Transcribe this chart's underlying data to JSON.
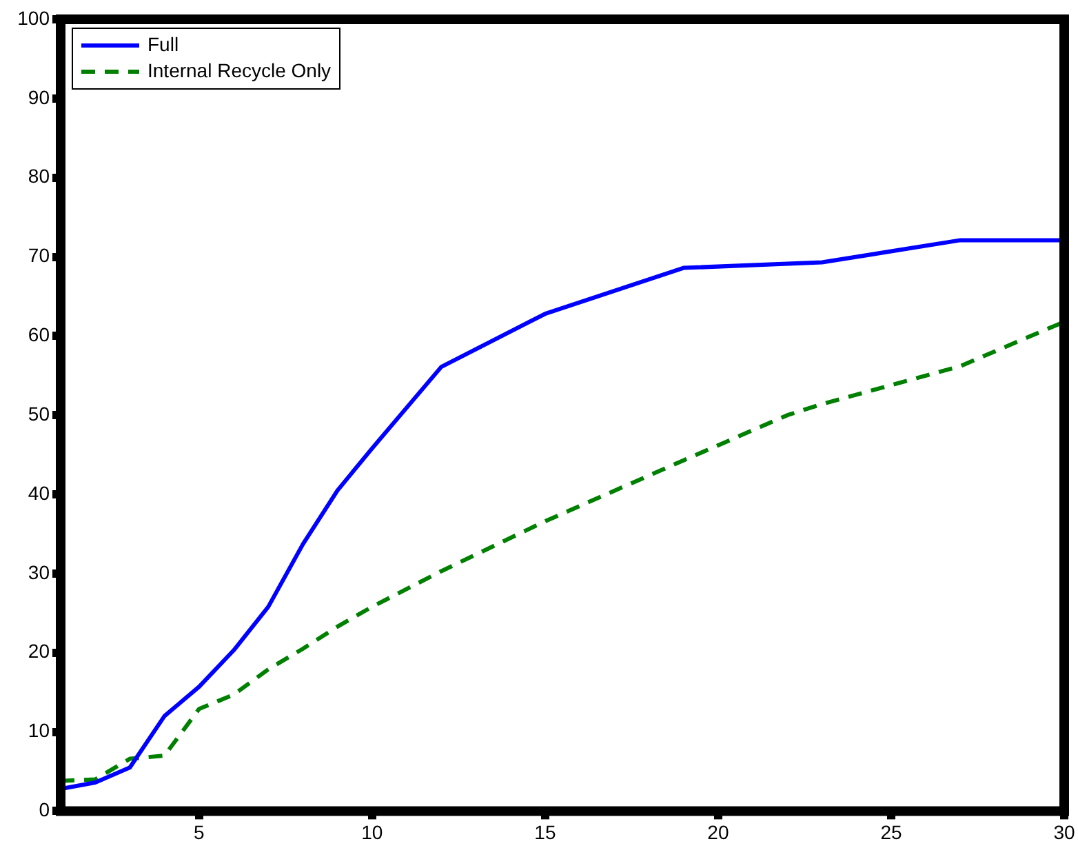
{
  "chart_data": {
    "type": "line",
    "xlim": [
      1,
      30
    ],
    "xticks": [
      5,
      10,
      15,
      20,
      25,
      30
    ],
    "ylim": [
      0,
      100
    ],
    "yticks": [
      0,
      10,
      20,
      30,
      40,
      50,
      60,
      70,
      80,
      90,
      100
    ],
    "grid": false,
    "legend": "top left",
    "marker": "none",
    "series": [
      {
        "name": "Full",
        "color": "#0000ff",
        "line_style": "solid",
        "x": [
          1,
          2,
          3,
          4,
          5,
          6,
          7,
          8,
          9,
          10,
          12,
          15,
          19,
          23,
          27,
          30
        ],
        "values": [
          2.8,
          3.6,
          5.5,
          12,
          15.7,
          20.3,
          25.8,
          33.7,
          40.5,
          45.8,
          56.1,
          62.8,
          68.6,
          69.3,
          72.1,
          72.1
        ]
      },
      {
        "name": "Internal Recycle Only",
        "color": "#008000",
        "line_style": "dashed",
        "x": [
          1,
          2,
          3,
          4,
          5,
          6,
          7,
          8,
          9,
          10,
          12,
          15,
          19,
          22,
          23,
          27,
          30
        ],
        "values": [
          3.8,
          4,
          6.6,
          7,
          12.9,
          14.7,
          17.9,
          20.5,
          23.3,
          25.8,
          30.3,
          36.6,
          44.3,
          50,
          51.4,
          56.2,
          61.8
        ]
      }
    ]
  }
}
